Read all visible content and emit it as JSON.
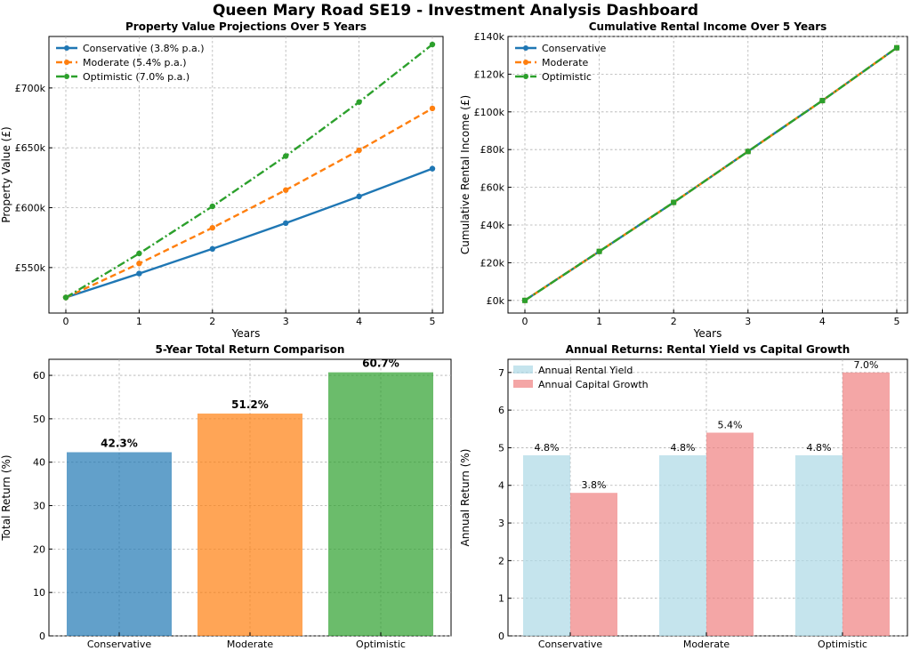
{
  "dashboard": {
    "title": "Queen Mary Road SE19 - Investment Analysis Dashboard"
  },
  "colors": {
    "blue": "#1f77b4",
    "orange": "#ff7f0e",
    "green": "#2ca02c",
    "lightblue": "#add8e6",
    "lightcoral": "#f08080"
  },
  "chart_data": [
    {
      "type": "line",
      "title": "Property Value Projections Over 5 Years",
      "xlabel": "Years",
      "ylabel": "Property Value (£)",
      "x": [
        0,
        1,
        2,
        3,
        4,
        5
      ],
      "xticks": [
        "0",
        "1",
        "2",
        "3",
        "4",
        "5"
      ],
      "ylim": [
        512000,
        743000
      ],
      "yticks": [
        550000,
        600000,
        650000,
        700000
      ],
      "ytick_labels": [
        "£550k",
        "£600k",
        "£650k",
        "£700k"
      ],
      "legend_position": "top-left",
      "series": [
        {
          "name": "Conservative (3.8% p.a.)",
          "values": [
            525000,
            545000,
            565600,
            587100,
            609400,
            632600
          ],
          "color": "#1f77b4",
          "dash": ""
        },
        {
          "name": "Moderate (5.4% p.a.)",
          "values": [
            525000,
            553400,
            583200,
            614700,
            647900,
            682900
          ],
          "color": "#ff7f0e",
          "dash": "7,4"
        },
        {
          "name": "Optimistic (7.0% p.a.)",
          "values": [
            525000,
            561800,
            601100,
            643100,
            688200,
            736300
          ],
          "color": "#2ca02c",
          "dash": "9,3,2,3"
        }
      ]
    },
    {
      "type": "line",
      "title": "Cumulative Rental Income Over 5 Years",
      "xlabel": "Years",
      "ylabel": "Cumulative Rental Income (£)",
      "x": [
        0,
        1,
        2,
        3,
        4,
        5
      ],
      "xticks": [
        "0",
        "1",
        "2",
        "3",
        "4",
        "5"
      ],
      "ylim": [
        -6700,
        140000
      ],
      "yticks": [
        0,
        20000,
        40000,
        60000,
        80000,
        100000,
        120000,
        140000
      ],
      "ytick_labels": [
        "£0k",
        "£20k",
        "£40k",
        "£60k",
        "£80k",
        "£100k",
        "£120k",
        "£140k"
      ],
      "legend_position": "top-left",
      "series": [
        {
          "name": "Conservative",
          "values": [
            0,
            26000,
            52000,
            79000,
            106000,
            134000
          ],
          "color": "#1f77b4",
          "dash": ""
        },
        {
          "name": "Moderate",
          "values": [
            0,
            26000,
            52000,
            79000,
            106000,
            134000
          ],
          "color": "#ff7f0e",
          "dash": "7,4"
        },
        {
          "name": "Optimistic",
          "values": [
            0,
            26000,
            52000,
            79000,
            106000,
            134000
          ],
          "color": "#2ca02c",
          "dash": "9,3,2,3"
        }
      ]
    },
    {
      "type": "bar",
      "title": "5-Year Total Return Comparison",
      "xlabel": "",
      "ylabel": "Total Return (%)",
      "categories": [
        "Conservative",
        "Moderate",
        "Optimistic"
      ],
      "values": [
        42.3,
        51.2,
        60.7
      ],
      "labels": [
        "42.3%",
        "51.2%",
        "60.7%"
      ],
      "colors": [
        "#1f77b4",
        "#ff7f0e",
        "#2ca02c"
      ],
      "ylim": [
        0,
        63.7
      ],
      "yticks": [
        0,
        10,
        20,
        30,
        40,
        50,
        60
      ],
      "ytick_labels": [
        "0",
        "10",
        "20",
        "30",
        "40",
        "50",
        "60"
      ]
    },
    {
      "type": "bar",
      "title": "Annual Returns: Rental Yield vs Capital Growth",
      "xlabel": "",
      "ylabel": "Annual Return (%)",
      "categories": [
        "Conservative",
        "Moderate",
        "Optimistic"
      ],
      "ylim": [
        0,
        7.35
      ],
      "yticks": [
        0,
        1,
        2,
        3,
        4,
        5,
        6,
        7
      ],
      "ytick_labels": [
        "0",
        "1",
        "2",
        "3",
        "4",
        "5",
        "6",
        "7"
      ],
      "legend_position": "top-left",
      "series": [
        {
          "name": "Annual Rental Yield",
          "values": [
            4.8,
            4.8,
            4.8
          ],
          "labels": [
            "4.8%",
            "4.8%",
            "4.8%"
          ],
          "color": "#add8e6"
        },
        {
          "name": "Annual Capital Growth",
          "values": [
            3.8,
            5.4,
            7.0
          ],
          "labels": [
            "3.8%",
            "5.4%",
            "7.0%"
          ],
          "color": "#f08080"
        }
      ]
    }
  ]
}
